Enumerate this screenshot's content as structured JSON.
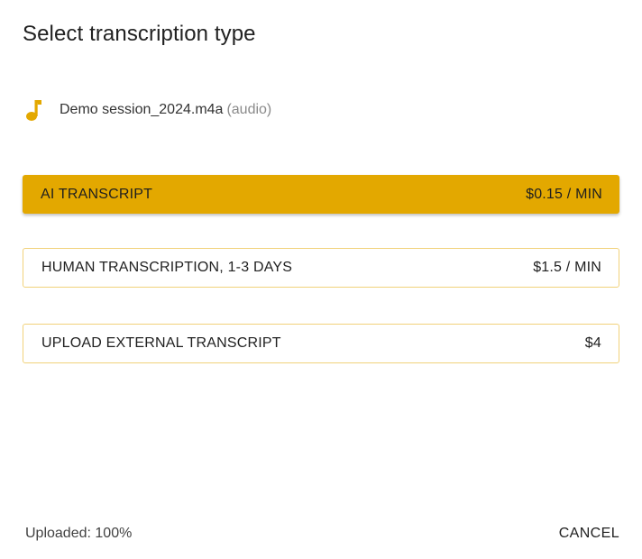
{
  "dialog": {
    "title": "Select transcription type"
  },
  "file": {
    "name": "Demo session_2024.m4a",
    "type": "(audio)",
    "icon": "music-note-icon",
    "icon_color": "#e3a800"
  },
  "options": [
    {
      "label": "AI TRANSCRIPT",
      "price": "$0.15 / MIN",
      "selected": true
    },
    {
      "label": "HUMAN TRANSCRIPTION, 1-3 DAYS",
      "price": "$1.5 / MIN",
      "selected": false
    },
    {
      "label": "UPLOAD EXTERNAL TRANSCRIPT",
      "price": "$4",
      "selected": false
    }
  ],
  "footer": {
    "status": "Uploaded: 100%",
    "cancel_label": "CANCEL"
  },
  "colors": {
    "accent": "#e3a800",
    "outline": "#f1d27a"
  }
}
